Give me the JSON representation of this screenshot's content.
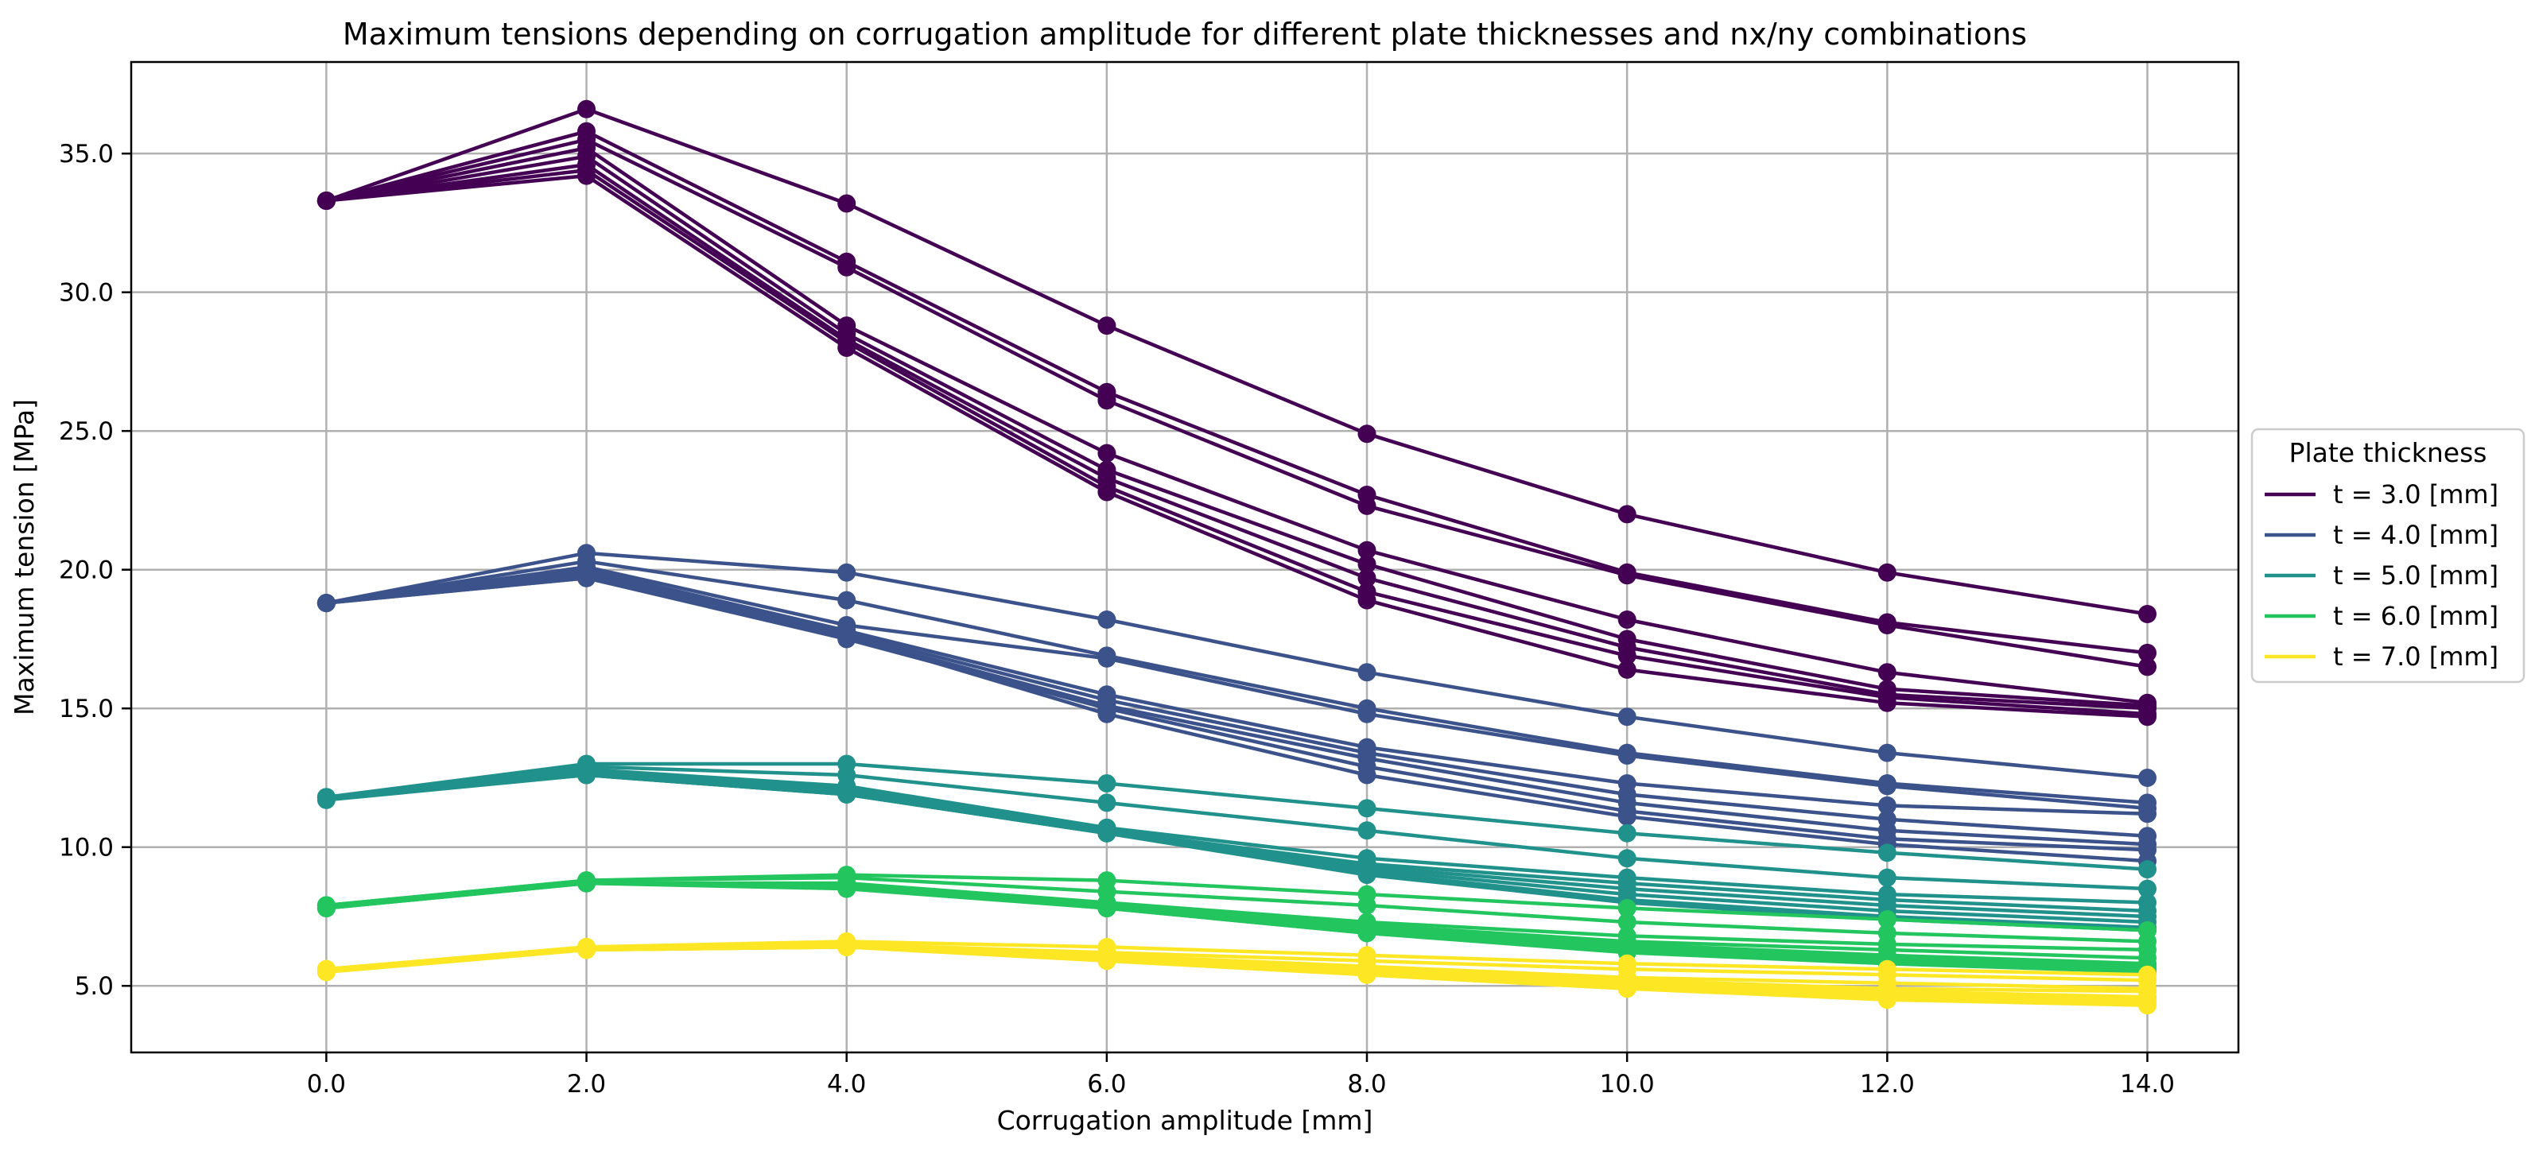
{
  "chart_data": {
    "type": "line",
    "title": "Maximum tensions depending on corrugation amplitude for different plate thicknesses and nx/ny combinations",
    "xlabel": "Corrugation amplitude [mm]",
    "ylabel": "Maximum tension [MPa]",
    "xlim": [
      -1.5,
      14.7
    ],
    "ylim": [
      2.6,
      38.3
    ],
    "grid": true,
    "x": [
      0,
      2,
      4,
      6,
      8,
      10,
      12,
      14
    ],
    "xticks": [
      0,
      2,
      4,
      6,
      8,
      10,
      12,
      14
    ],
    "xtick_labels": [
      "0.0",
      "2.0",
      "4.0",
      "6.0",
      "8.0",
      "10.0",
      "12.0",
      "14.0"
    ],
    "yticks": [
      5,
      10,
      15,
      20,
      25,
      30,
      35
    ],
    "ytick_labels": [
      "5.0",
      "10.0",
      "15.0",
      "20.0",
      "25.0",
      "30.0",
      "35.0"
    ],
    "legend": {
      "title": "Plate thickness",
      "placement": "center-right, outside plot",
      "entries": [
        "t = 3.0 [mm]",
        "t = 4.0 [mm]",
        "t = 5.0 [mm]",
        "t = 6.0 [mm]",
        "t = 7.0 [mm]"
      ]
    },
    "groups": [
      {
        "name": "t = 3.0 [mm]",
        "color": "#440154",
        "series": [
          [
            33.3,
            36.6,
            33.2,
            28.8,
            24.9,
            22.0,
            19.9,
            18.4
          ],
          [
            33.3,
            35.8,
            31.1,
            26.4,
            22.7,
            19.9,
            18.1,
            17.0
          ],
          [
            33.3,
            35.5,
            30.9,
            26.1,
            22.3,
            19.8,
            18.0,
            16.5
          ],
          [
            33.3,
            35.2,
            28.8,
            24.2,
            20.7,
            18.2,
            16.3,
            15.2
          ],
          [
            33.3,
            34.9,
            28.5,
            23.6,
            20.2,
            17.5,
            15.7,
            15.1
          ],
          [
            33.3,
            34.6,
            28.3,
            23.3,
            19.7,
            17.2,
            15.5,
            15.0
          ],
          [
            33.3,
            34.4,
            28.2,
            23.0,
            19.2,
            16.9,
            15.4,
            14.8
          ],
          [
            33.3,
            34.2,
            28.0,
            22.8,
            18.9,
            16.4,
            15.2,
            14.7
          ]
        ]
      },
      {
        "name": "t = 4.0 [mm]",
        "color": "#3b528b",
        "series": [
          [
            18.8,
            20.6,
            19.9,
            18.2,
            16.3,
            14.7,
            13.4,
            12.5
          ],
          [
            18.8,
            20.3,
            18.9,
            16.9,
            15.0,
            13.4,
            12.3,
            11.6
          ],
          [
            18.8,
            20.1,
            18.0,
            16.8,
            14.8,
            13.3,
            12.2,
            11.4
          ],
          [
            18.8,
            20.0,
            17.8,
            15.5,
            13.6,
            12.3,
            11.5,
            11.2
          ],
          [
            18.8,
            19.9,
            17.7,
            15.3,
            13.4,
            11.9,
            11.0,
            10.4
          ],
          [
            18.8,
            19.8,
            17.6,
            15.1,
            13.2,
            11.6,
            10.6,
            10.1
          ],
          [
            18.8,
            19.7,
            17.5,
            15.0,
            12.9,
            11.3,
            10.3,
            9.9
          ],
          [
            18.8,
            19.7,
            17.6,
            14.8,
            12.6,
            11.1,
            10.1,
            9.5
          ]
        ]
      },
      {
        "name": "t = 5.0 [mm]",
        "color": "#21918c",
        "series": [
          [
            11.8,
            13.0,
            13.0,
            12.3,
            11.4,
            10.5,
            9.8,
            9.2
          ],
          [
            11.8,
            12.9,
            12.6,
            11.6,
            10.6,
            9.6,
            8.9,
            8.5
          ],
          [
            11.8,
            12.8,
            12.2,
            10.7,
            9.6,
            8.9,
            8.3,
            8.0
          ],
          [
            11.8,
            12.7,
            12.1,
            10.6,
            9.4,
            8.7,
            8.1,
            7.7
          ],
          [
            11.8,
            12.7,
            12.0,
            10.6,
            9.3,
            8.5,
            7.9,
            7.5
          ],
          [
            11.8,
            12.6,
            11.9,
            10.5,
            9.2,
            8.3,
            7.7,
            7.3
          ],
          [
            11.8,
            12.6,
            11.9,
            10.5,
            9.1,
            8.1,
            7.5,
            7.1
          ],
          [
            11.7,
            12.6,
            11.9,
            10.5,
            9.0,
            8.0,
            7.4,
            7.0
          ]
        ]
      },
      {
        "name": "t = 6.0 [mm]",
        "color": "#22c55e",
        "series": [
          [
            7.9,
            8.8,
            9.0,
            8.8,
            8.3,
            7.8,
            7.4,
            7.0
          ],
          [
            7.9,
            8.8,
            8.9,
            8.4,
            7.9,
            7.3,
            6.9,
            6.6
          ],
          [
            7.9,
            8.7,
            8.7,
            8.0,
            7.3,
            6.8,
            6.5,
            6.3
          ],
          [
            7.9,
            8.7,
            8.7,
            7.9,
            7.2,
            6.6,
            6.3,
            6.0
          ],
          [
            7.9,
            8.7,
            8.6,
            7.8,
            7.1,
            6.5,
            6.1,
            5.8
          ],
          [
            7.8,
            8.7,
            8.6,
            7.8,
            7.0,
            6.4,
            6.0,
            5.7
          ],
          [
            7.8,
            8.7,
            8.6,
            7.8,
            6.9,
            6.3,
            5.9,
            5.6
          ],
          [
            7.8,
            8.7,
            8.5,
            7.8,
            6.9,
            6.2,
            5.8,
            5.5
          ]
        ]
      },
      {
        "name": "t = 7.0 [mm]",
        "color": "#fde725",
        "series": [
          [
            5.6,
            6.4,
            6.6,
            6.4,
            6.1,
            5.8,
            5.6,
            5.4
          ],
          [
            5.6,
            6.4,
            6.5,
            6.2,
            5.9,
            5.6,
            5.4,
            5.2
          ],
          [
            5.6,
            6.4,
            6.5,
            6.1,
            5.7,
            5.3,
            5.1,
            4.9
          ],
          [
            5.6,
            6.3,
            6.5,
            6.0,
            5.6,
            5.2,
            4.9,
            4.8
          ],
          [
            5.6,
            6.3,
            6.4,
            6.0,
            5.5,
            5.1,
            4.8,
            4.6
          ],
          [
            5.6,
            6.3,
            6.4,
            6.0,
            5.5,
            5.0,
            4.7,
            4.5
          ],
          [
            5.5,
            6.3,
            6.4,
            6.0,
            5.4,
            4.9,
            4.6,
            4.4
          ],
          [
            5.5,
            6.3,
            6.4,
            5.9,
            5.4,
            4.9,
            4.5,
            4.3
          ]
        ]
      }
    ]
  }
}
